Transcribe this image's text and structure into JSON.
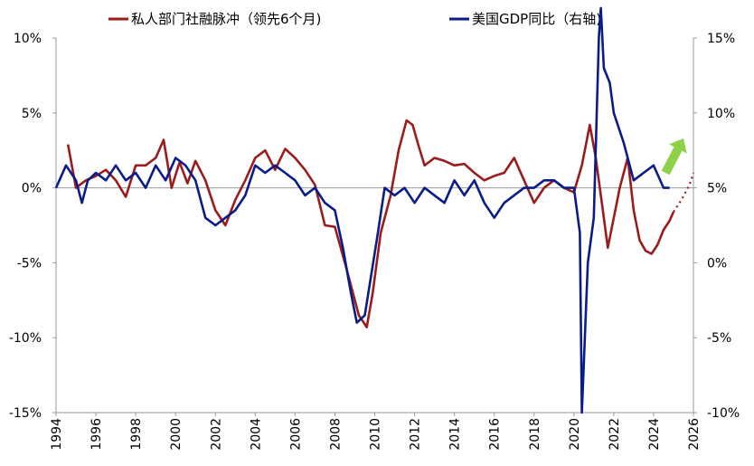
{
  "chart_data": {
    "type": "line",
    "legend": [
      {
        "name": "私人部门社融脉冲（领先6个月)",
        "color": "#9b1c1c"
      },
      {
        "name": "美国GDP同比（右轴)",
        "color": "#0a1c8a"
      }
    ],
    "legend_position": "top",
    "grid": false,
    "x_range": [
      1994,
      2026
    ],
    "x_ticks": [
      "1994",
      "1996",
      "1998",
      "2000",
      "2002",
      "2004",
      "2006",
      "2008",
      "2010",
      "2012",
      "2014",
      "2016",
      "2018",
      "2020",
      "2022",
      "2024",
      "2026"
    ],
    "left_axis": {
      "range": [
        -15,
        10
      ],
      "ticks": [
        "10%",
        "5%",
        "0%",
        "-5%",
        "-10%",
        "-15%"
      ]
    },
    "right_axis": {
      "range": [
        -10,
        15
      ],
      "ticks": [
        "15%",
        "10%",
        "5%",
        "0%",
        "-5%",
        "-10%"
      ]
    },
    "series": [
      {
        "name": "私人部门社融脉冲（领先6个月)",
        "axis": "left",
        "color": "#9b1c1c",
        "x": [
          1994.6,
          1995.0,
          1995.5,
          1996.0,
          1996.5,
          1997.0,
          1997.5,
          1998.0,
          1998.5,
          1999.0,
          1999.4,
          1999.8,
          2000.2,
          2000.6,
          2001.0,
          2001.5,
          2002.0,
          2002.5,
          2003.0,
          2003.5,
          2004.0,
          2004.5,
          2005.0,
          2005.5,
          2006.0,
          2006.5,
          2007.0,
          2007.5,
          2008.0,
          2008.5,
          2008.9,
          2009.2,
          2009.6,
          2009.9,
          2010.3,
          2010.8,
          2011.2,
          2011.6,
          2011.9,
          2012.2,
          2012.5,
          2013.0,
          2013.5,
          2014.0,
          2014.5,
          2015.0,
          2015.5,
          2016.0,
          2016.5,
          2017.0,
          2017.5,
          2018.0,
          2018.5,
          2019.0,
          2019.5,
          2020.0,
          2020.4,
          2020.8,
          2021.1,
          2021.4,
          2021.7,
          2022.0,
          2022.3,
          2022.7,
          2023.0,
          2023.3,
          2023.6,
          2023.9,
          2024.2,
          2024.5,
          2024.8,
          2025.0
        ],
        "y": [
          2.9,
          0.0,
          0.5,
          0.8,
          1.2,
          0.5,
          -0.6,
          1.5,
          1.5,
          2.0,
          3.2,
          0.0,
          1.7,
          0.3,
          1.8,
          0.5,
          -1.5,
          -2.5,
          -0.8,
          0.5,
          2.0,
          2.5,
          1.2,
          2.6,
          2.0,
          1.2,
          0.2,
          -2.5,
          -2.6,
          -5.0,
          -7.0,
          -8.5,
          -9.3,
          -7.0,
          -3.0,
          -0.5,
          2.5,
          4.5,
          4.2,
          2.8,
          1.5,
          2.0,
          1.8,
          1.5,
          1.6,
          1.0,
          0.5,
          0.8,
          1.0,
          2.0,
          0.5,
          -1.0,
          0.0,
          0.5,
          0.0,
          -0.3,
          1.5,
          4.2,
          2.0,
          -1.0,
          -4.0,
          -2.0,
          0.0,
          2.0,
          -1.5,
          -3.5,
          -4.2,
          -4.4,
          -3.8,
          -2.8,
          -2.2,
          -1.6
        ]
      },
      {
        "name": "美国GDP同比（右轴)",
        "axis": "right",
        "color": "#0a1c8a",
        "x": [
          1994.0,
          1994.5,
          1995.0,
          1995.3,
          1995.6,
          1996.0,
          1996.5,
          1997.0,
          1997.5,
          1998.0,
          1998.5,
          1999.0,
          1999.5,
          2000.0,
          2000.5,
          2001.0,
          2001.5,
          2002.0,
          2002.5,
          2003.0,
          2003.5,
          2004.0,
          2004.5,
          2005.0,
          2005.5,
          2006.0,
          2006.5,
          2007.0,
          2007.5,
          2008.0,
          2008.4,
          2008.8,
          2009.1,
          2009.5,
          2009.8,
          2010.1,
          2010.5,
          2011.0,
          2011.5,
          2012.0,
          2012.5,
          2013.0,
          2013.5,
          2014.0,
          2014.5,
          2015.0,
          2015.5,
          2016.0,
          2016.5,
          2017.0,
          2017.5,
          2018.0,
          2018.5,
          2019.0,
          2019.5,
          2020.0,
          2020.3,
          2020.4,
          2020.7,
          2021.0,
          2021.25,
          2021.35,
          2021.5,
          2021.8,
          2022.0,
          2022.5,
          2023.0,
          2023.5,
          2024.0,
          2024.5,
          2024.8
        ],
        "y": [
          5.0,
          6.5,
          5.5,
          4.0,
          5.5,
          6.0,
          5.5,
          6.5,
          5.5,
          6.0,
          5.0,
          6.5,
          5.5,
          7.0,
          6.5,
          5.5,
          3.0,
          2.5,
          3.0,
          3.5,
          4.5,
          6.5,
          6.0,
          6.5,
          6.0,
          5.5,
          4.5,
          5.0,
          4.0,
          3.5,
          1.0,
          -2.0,
          -4.0,
          -3.5,
          -1.0,
          1.5,
          5.0,
          4.5,
          5.0,
          4.0,
          5.0,
          4.5,
          4.0,
          5.5,
          4.5,
          5.5,
          4.0,
          3.0,
          4.0,
          4.5,
          5.0,
          5.0,
          5.5,
          5.5,
          5.0,
          5.0,
          2.0,
          -10.0,
          0.0,
          3.0,
          15.0,
          17.0,
          13.0,
          12.0,
          10.0,
          8.0,
          5.5,
          6.0,
          6.5,
          5.0,
          5.0
        ]
      },
      {
        "name": "",
        "axis": "left",
        "style": "dotted",
        "color": "#9b1c1c",
        "x": [
          2025.0,
          2025.4,
          2025.8,
          2026.0
        ],
        "y": [
          -1.6,
          -0.8,
          0.2,
          1.0
        ]
      }
    ],
    "annotations": [
      {
        "type": "arrow",
        "color": "#8dd149",
        "direction": "up-right",
        "x_from": 2024.6,
        "x_to": 2025.5,
        "y_from": 1.0,
        "y_to": 3.3,
        "axis": "left"
      }
    ]
  }
}
